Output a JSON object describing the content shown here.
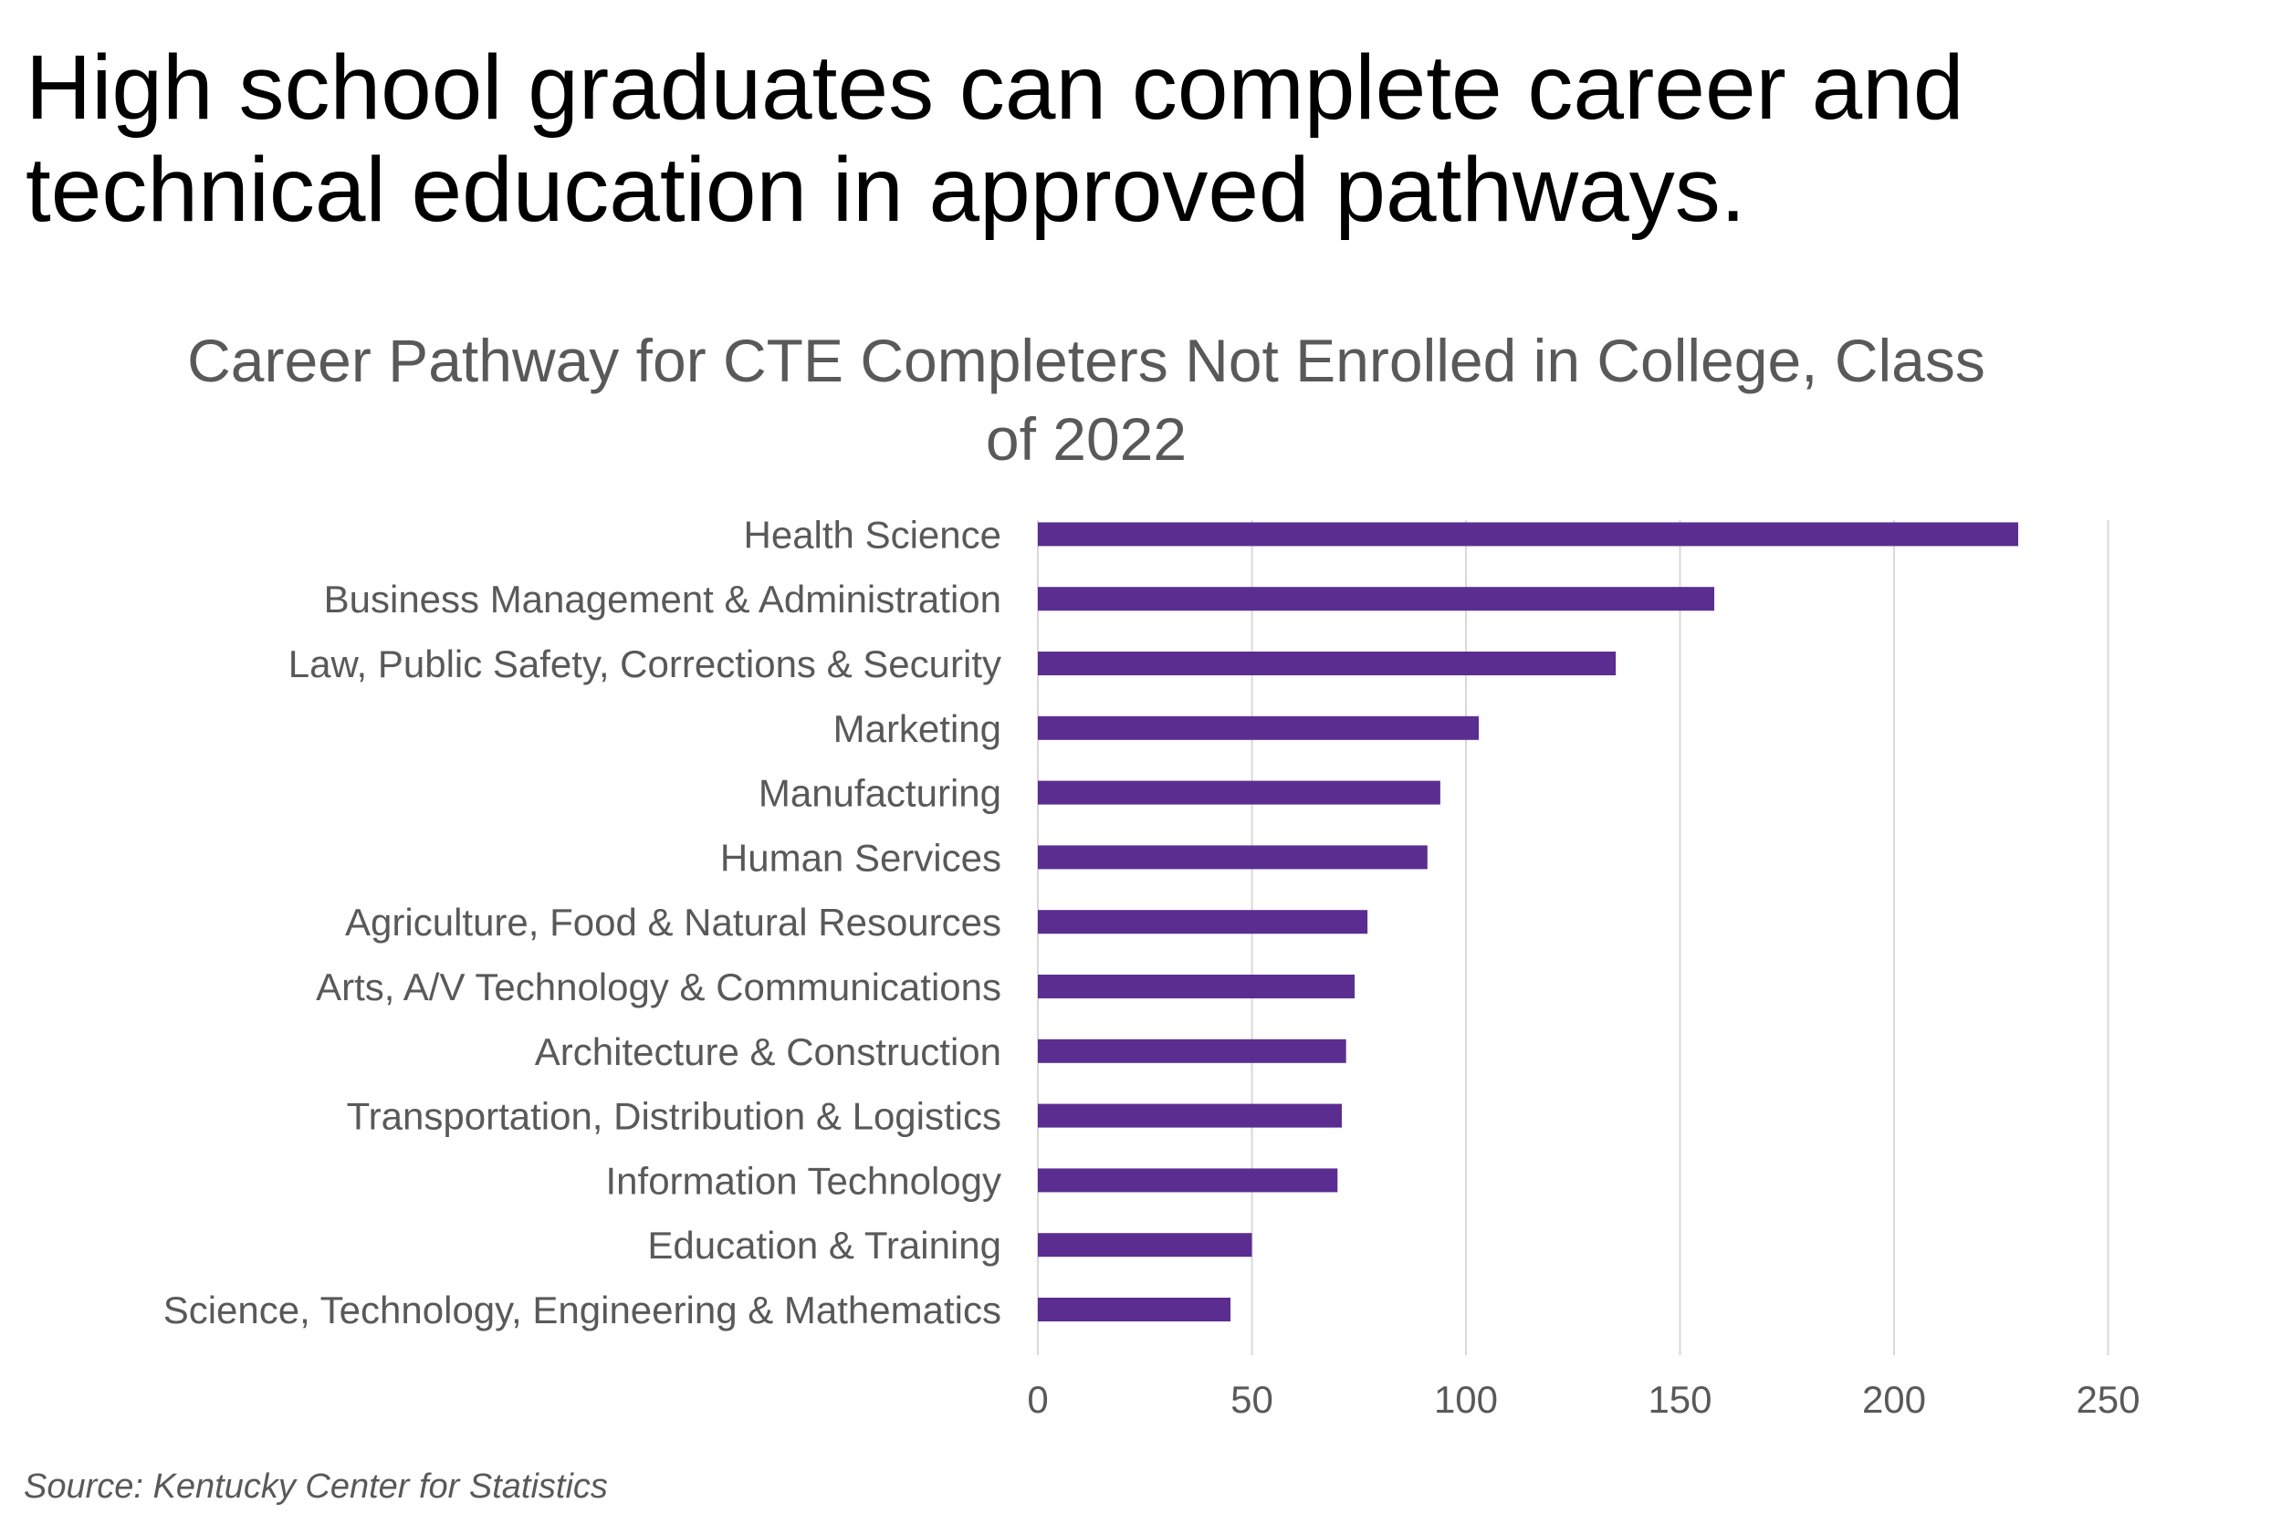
{
  "headline": "High school graduates can complete career and technical education in approved pathways.",
  "source": "Source: Kentucky Center for Statistics",
  "colors": {
    "bar": "#5c2d91",
    "grid": "#d9d9d9",
    "label_text": "#595959"
  },
  "chart_data": {
    "type": "bar",
    "orientation": "horizontal",
    "title": "Career Pathway for CTE Completers Not Enrolled in College, Class of 2022",
    "xlabel": "",
    "ylabel": "",
    "xlim": [
      0,
      280
    ],
    "xticks": [
      0,
      50,
      100,
      150,
      200,
      250
    ],
    "grid": "vertical",
    "legend": "none",
    "categories": [
      "Health Science",
      "Business Management & Administration",
      "Law, Public Safety, Corrections & Security",
      "Marketing",
      "Manufacturing",
      "Human Services",
      "Agriculture, Food & Natural Resources",
      "Arts, A/V Technology & Communications",
      "Architecture & Construction",
      "Transportation, Distribution & Logistics",
      "Information Technology",
      "Education & Training",
      "Science, Technology, Engineering & Mathematics"
    ],
    "values": [
      229,
      158,
      135,
      103,
      94,
      91,
      77,
      74,
      72,
      71,
      70,
      50,
      45
    ]
  }
}
